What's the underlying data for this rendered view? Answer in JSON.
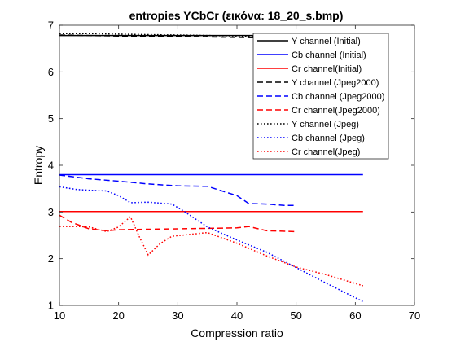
{
  "chart_data": {
    "type": "line",
    "title": "entropies YCbCr (εικόνα: 18_20_s.bmp)",
    "xlabel": "Compression ratio",
    "ylabel": "Entropy",
    "xlim": [
      10,
      70
    ],
    "ylim": [
      1,
      7
    ],
    "xticks": [
      "10",
      "20",
      "30",
      "40",
      "50",
      "60",
      "70"
    ],
    "yticks": [
      "1",
      "2",
      "3",
      "4",
      "5",
      "6",
      "7"
    ],
    "grid": false,
    "legend_position": "top-right",
    "series": [
      {
        "name": "Y channel (Initial)",
        "color": "#000000",
        "style": "solid",
        "x": [
          10,
          61.3
        ],
        "y": [
          6.78,
          6.78
        ]
      },
      {
        "name": "Cb channel (Initial)",
        "color": "#0000ff",
        "style": "solid",
        "x": [
          10,
          61.3
        ],
        "y": [
          3.8,
          3.8
        ]
      },
      {
        "name": "Cr channel(Initial)",
        "color": "#ff0000",
        "style": "solid",
        "x": [
          10,
          61.3
        ],
        "y": [
          3.01,
          3.01
        ]
      },
      {
        "name": "Y channel (Jpeg2000)",
        "color": "#000000",
        "style": "dashed",
        "x": [
          10,
          15,
          20,
          25,
          30,
          35,
          40,
          45,
          50
        ],
        "y": [
          6.79,
          6.78,
          6.77,
          6.77,
          6.76,
          6.75,
          6.74,
          6.73,
          6.72
        ]
      },
      {
        "name": "Cb channel (Jpeg2000)",
        "color": "#0000ff",
        "style": "dashed",
        "x": [
          10,
          15,
          20,
          25,
          30,
          35,
          40,
          42,
          45,
          48,
          50
        ],
        "y": [
          3.79,
          3.71,
          3.66,
          3.6,
          3.56,
          3.55,
          3.35,
          3.18,
          3.17,
          3.14,
          3.14
        ]
      },
      {
        "name": "Cr channel(Jpeg2000)",
        "color": "#ff0000",
        "style": "dashed",
        "x": [
          10,
          12,
          15,
          18,
          20,
          25,
          30,
          35,
          40,
          42,
          45,
          50
        ],
        "y": [
          2.93,
          2.78,
          2.64,
          2.6,
          2.62,
          2.63,
          2.64,
          2.65,
          2.66,
          2.69,
          2.6,
          2.58
        ]
      },
      {
        "name": "Y channel (Jpeg)",
        "color": "#000000",
        "style": "dotted",
        "x": [
          10,
          15,
          20,
          25,
          30,
          35,
          40,
          45,
          50
        ],
        "y": [
          6.82,
          6.82,
          6.81,
          6.8,
          6.79,
          6.78,
          6.77,
          6.76,
          6.75
        ]
      },
      {
        "name": "Cb channel (Jpeg)",
        "color": "#0000ff",
        "style": "dotted",
        "x": [
          10,
          13,
          16,
          18,
          20,
          22,
          25,
          29,
          31,
          33,
          35,
          40,
          45,
          50,
          55,
          61.3
        ],
        "y": [
          3.54,
          3.48,
          3.46,
          3.45,
          3.35,
          3.2,
          3.21,
          3.17,
          3.02,
          2.85,
          2.68,
          2.4,
          2.14,
          1.81,
          1.48,
          1.08
        ]
      },
      {
        "name": "Cr channel(Jpeg)",
        "color": "#ff0000",
        "style": "dotted",
        "x": [
          10,
          13,
          15,
          18,
          20,
          22,
          23.5,
          25,
          27,
          29,
          32,
          35,
          40,
          45,
          50,
          55,
          61.3
        ],
        "y": [
          2.69,
          2.69,
          2.68,
          2.58,
          2.68,
          2.9,
          2.47,
          2.08,
          2.32,
          2.48,
          2.52,
          2.56,
          2.33,
          2.06,
          1.82,
          1.66,
          1.42
        ]
      }
    ]
  }
}
